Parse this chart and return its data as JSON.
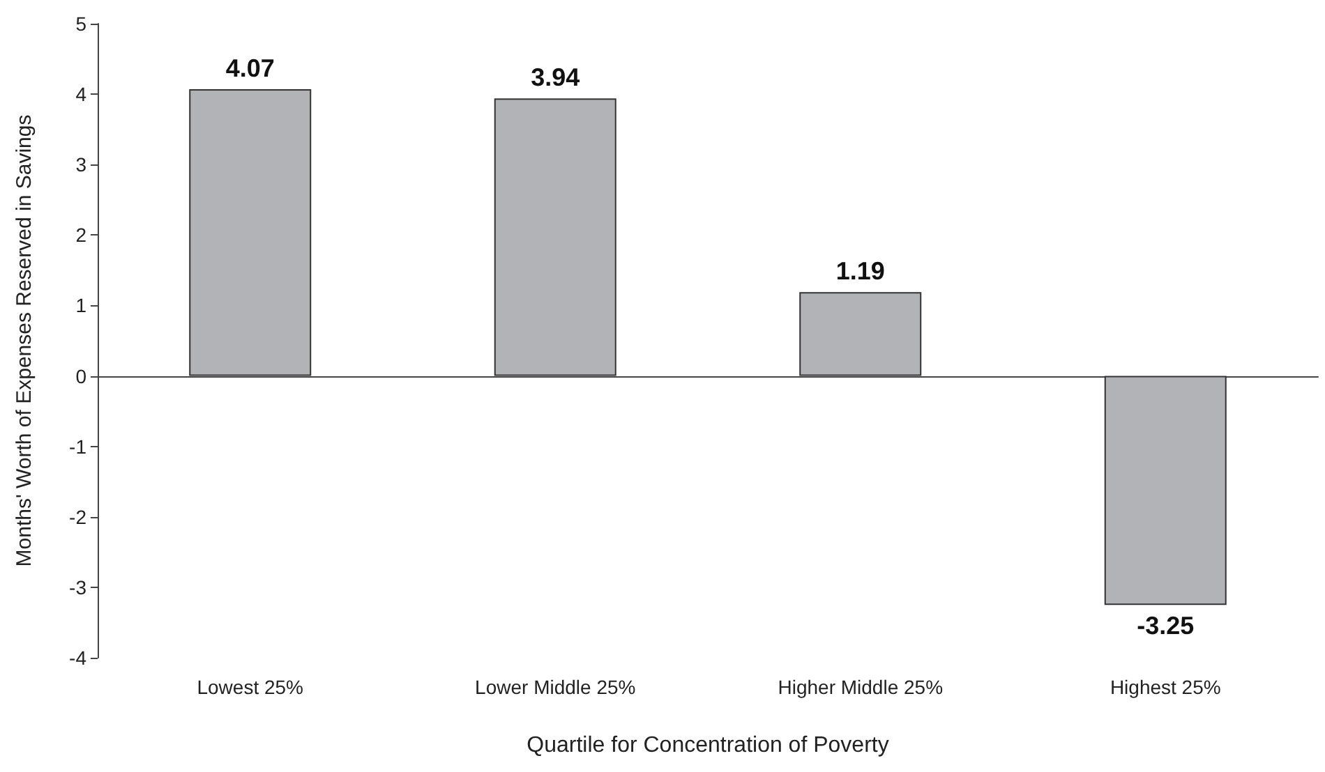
{
  "chart_data": {
    "type": "bar",
    "xlabel": "Quartile for Concentration of Poverty",
    "ylabel": "Months' Worth of Expenses Reserved in Savings",
    "categories": [
      "Lowest 25%",
      "Lower Middle 25%",
      "Higher Middle 25%",
      "Highest 25%"
    ],
    "values": [
      4.07,
      3.94,
      1.19,
      -3.25
    ],
    "color": "#b2b3b6",
    "ylim": [
      -4,
      5
    ],
    "yticks": [
      -4,
      -3,
      -2,
      -1,
      0,
      1,
      2,
      3,
      4,
      5
    ],
    "data_labels": true
  }
}
